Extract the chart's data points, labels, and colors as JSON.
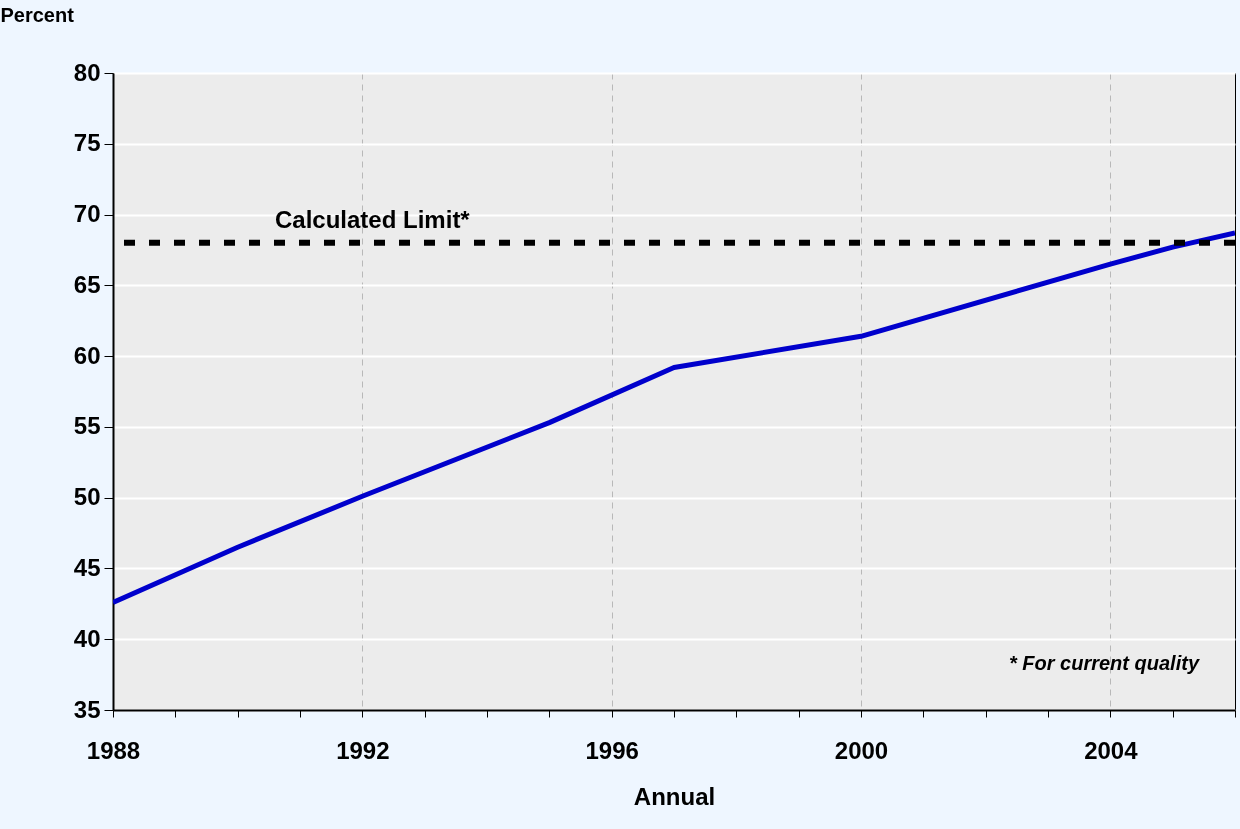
{
  "chart_data": {
    "type": "line",
    "xlabel": "Annual",
    "ylabel": "Percent",
    "x": [
      1988,
      1990,
      1992,
      1995,
      1997,
      2000,
      2004,
      2005,
      2006
    ],
    "series": [
      {
        "color": "#0000cc",
        "values": [
          42.6,
          46.5,
          50.1,
          55.3,
          59.2,
          61.4,
          66.5,
          67.7,
          68.7
        ]
      }
    ],
    "xlim": [
      1988,
      2006
    ],
    "xticks": [
      1988,
      {
        "value": 1989,
        "label": null
      },
      {
        "value": 1990,
        "label": null
      },
      {
        "value": 1991,
        "label": null
      },
      1992,
      {
        "value": 1993,
        "label": null
      },
      {
        "value": 1994,
        "label": null
      },
      {
        "value": 1995,
        "label": null
      },
      1996,
      {
        "value": 1997,
        "label": null
      },
      {
        "value": 1998,
        "label": null
      },
      {
        "value": 1999,
        "label": null
      },
      2000,
      {
        "value": 2001,
        "label": null
      },
      {
        "value": 2002,
        "label": null
      },
      {
        "value": 2003,
        "label": null
      },
      2004,
      {
        "value": 2005,
        "label": null
      },
      {
        "value": 2006,
        "label": null
      }
    ],
    "ylim": [
      35,
      80
    ],
    "yticks": [
      35,
      40,
      45,
      50,
      55,
      60,
      65,
      70,
      75,
      80
    ],
    "grid": true,
    "legend": false,
    "marker": "none",
    "line_style": "solid",
    "ref_lines": [
      {
        "axis": "y",
        "value": 68,
        "label": "Calculated Limit*",
        "color": "#000000",
        "line_style": "dashed"
      }
    ],
    "annotations": [
      "* For current quality"
    ]
  }
}
